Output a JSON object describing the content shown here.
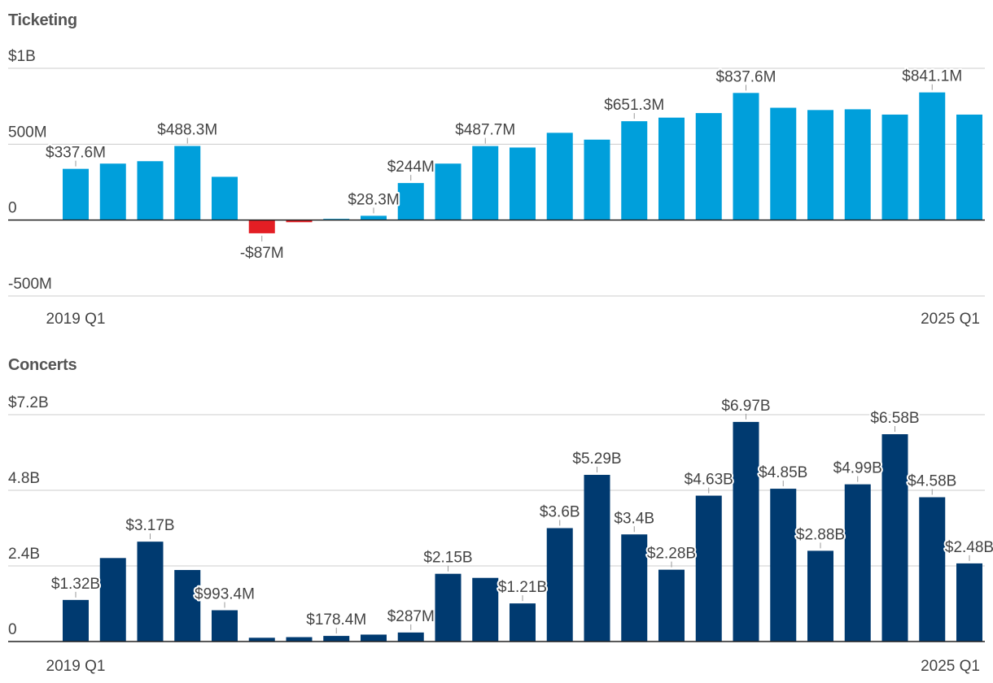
{
  "chart_data": [
    {
      "type": "bar",
      "title": "Ticketing",
      "colors": {
        "positive": "#009fdb",
        "negative": "#e31e24"
      },
      "ylim": [
        -500,
        1000
      ],
      "yticks": [
        {
          "value": 1000,
          "label": "$1B"
        },
        {
          "value": 500,
          "label": "500M"
        },
        {
          "value": 0,
          "label": "0"
        },
        {
          "value": -500,
          "label": "-500M"
        }
      ],
      "values": [
        337.6,
        372,
        388,
        488.3,
        285,
        -87,
        -14,
        8,
        28.3,
        244,
        372,
        487.7,
        478,
        575,
        530,
        651.3,
        675,
        705,
        837.6,
        740,
        725,
        730,
        695,
        841.1,
        695
      ],
      "labels": [
        "$337.6M",
        "",
        "",
        "$488.3M",
        "",
        "-$87M",
        "",
        "",
        "$28.3M",
        "$244M",
        "",
        "$487.7M",
        "",
        "",
        "",
        "$651.3M",
        "",
        "",
        "$837.6M",
        "",
        "",
        "",
        "",
        "$841.1M",
        ""
      ],
      "x_first": "2019 Q1",
      "x_last": "2025 Q1"
    },
    {
      "type": "bar",
      "title": "Concerts",
      "colors": {
        "positive": "#003a70"
      },
      "ylim": [
        0,
        7.2
      ],
      "yticks": [
        {
          "value": 7.2,
          "label": "$7.2B"
        },
        {
          "value": 4.8,
          "label": "4.8B"
        },
        {
          "value": 2.4,
          "label": "2.4B"
        },
        {
          "value": 0,
          "label": "0"
        }
      ],
      "values": [
        1.32,
        2.65,
        3.17,
        2.27,
        0.9934,
        0.12,
        0.14,
        0.1784,
        0.22,
        0.287,
        2.15,
        2.02,
        1.21,
        3.6,
        5.29,
        3.4,
        2.28,
        4.63,
        6.97,
        4.85,
        2.88,
        4.99,
        6.58,
        4.58,
        2.48
      ],
      "labels": [
        "$1.32B",
        "",
        "$3.17B",
        "",
        "$993.4M",
        "",
        "",
        "$178.4M",
        "",
        "$287M",
        "$2.15B",
        "",
        "$1.21B",
        "$3.6B",
        "$5.29B",
        "$3.4B",
        "$2.28B",
        "$4.63B",
        "$6.97B",
        "$4.85B",
        "$2.88B",
        "$4.99B",
        "$6.58B",
        "$4.58B",
        "$2.48B"
      ],
      "x_first": "2019 Q1",
      "x_last": "2025 Q1"
    }
  ]
}
